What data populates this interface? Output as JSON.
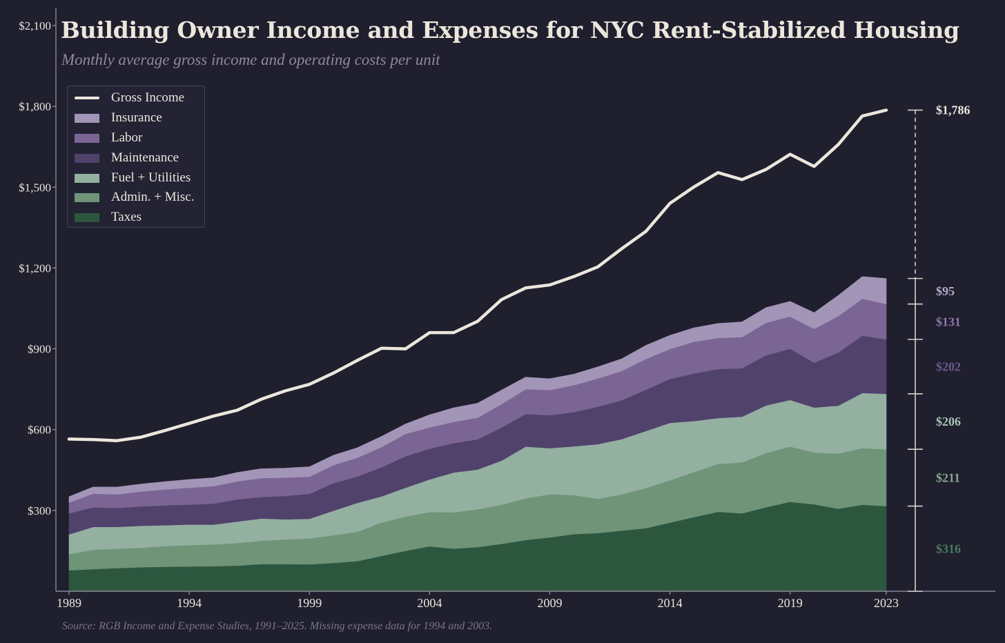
{
  "title": "Building Owner Income and Expenses for NYC Rent-Stabilized Housing",
  "subtitle": "Monthly average gross income and operating costs per unit",
  "source": "Source: RGB Income and Expense Studies, 1991–2025. Missing expense data for 1994 and 2003.",
  "colors": {
    "background": "#1f1f2e",
    "income": "#ece6dc",
    "insurance": "#a395b7",
    "labor": "#7b6594",
    "maintenance": "#51426c",
    "fuel_utilities": "#93b0a0",
    "admin_misc": "#6f9478",
    "taxes": "#2d563f",
    "axis": "#9a9aaa",
    "tick_label": "#ece6dc"
  },
  "legend": [
    {
      "key": "income",
      "label": "Gross Income",
      "kind": "line"
    },
    {
      "key": "insurance",
      "label": "Insurance",
      "kind": "area"
    },
    {
      "key": "labor",
      "label": "Labor",
      "kind": "area"
    },
    {
      "key": "maintenance",
      "label": "Maintenance",
      "kind": "area"
    },
    {
      "key": "fuel_utilities",
      "label": "Fuel + Utilities",
      "kind": "area"
    },
    {
      "key": "admin_misc",
      "label": "Admin. + Misc.",
      "kind": "area"
    },
    {
      "key": "taxes",
      "label": "Taxes",
      "kind": "area"
    }
  ],
  "chart_data": {
    "type": "area",
    "title": "Building Owner Income and Expenses for NYC Rent-Stabilized Housing",
    "subtitle": "Monthly average gross income and operating costs per unit",
    "xlabel": "",
    "ylabel": "",
    "x": [
      1989,
      1990,
      1991,
      1992,
      1993,
      1994,
      1995,
      1996,
      1997,
      1998,
      1999,
      2000,
      2001,
      2002,
      2003,
      2004,
      2005,
      2006,
      2007,
      2008,
      2009,
      2010,
      2011,
      2012,
      2013,
      2014,
      2015,
      2016,
      2017,
      2018,
      2019,
      2020,
      2021,
      2022,
      2023
    ],
    "x_ticks": [
      1989,
      1994,
      1999,
      2004,
      2009,
      2014,
      2019,
      2023
    ],
    "x_tick_labels": [
      "1989",
      "1994",
      "1999",
      "2004",
      "2009",
      "2014",
      "2019",
      "2023"
    ],
    "ylim": [
      0,
      2100
    ],
    "y_ticks": [
      300,
      600,
      900,
      1200,
      1500,
      1800,
      2100
    ],
    "y_tick_labels": [
      "$300",
      "$600",
      "$900",
      "$1,200",
      "$1,500",
      "$1,800",
      "$2,100"
    ],
    "grid": false,
    "legend_position": "top-left",
    "line_series": {
      "key": "income",
      "name": "Gross Income",
      "values": [
        565,
        563,
        559,
        572,
        597,
        623,
        650,
        672,
        713,
        744,
        768,
        810,
        857,
        902,
        900,
        960,
        960,
        1002,
        1083,
        1126,
        1137,
        1168,
        1204,
        1272,
        1336,
        1440,
        1501,
        1554,
        1528,
        1566,
        1622,
        1577,
        1658,
        1764,
        1786
      ]
    },
    "stacked_series": [
      {
        "key": "taxes",
        "name": "Taxes",
        "values": [
          78,
          82,
          86,
          89,
          91,
          92,
          93,
          95,
          101,
          101,
          100,
          105,
          112,
          131,
          150,
          167,
          158,
          164,
          176,
          190,
          200,
          212,
          216,
          225,
          234,
          255,
          275,
          295,
          289,
          312,
          332,
          323,
          306,
          321,
          316
        ]
      },
      {
        "key": "admin_misc",
        "name": "Admin. + Misc.",
        "values": [
          60,
          72,
          72,
          72,
          77,
          79,
          81,
          84,
          86,
          91,
          96,
          103,
          109,
          124,
          127,
          127,
          135,
          140,
          145,
          155,
          160,
          145,
          127,
          135,
          149,
          157,
          167,
          178,
          189,
          201,
          205,
          192,
          205,
          210,
          211
        ]
      },
      {
        "key": "fuel_utilities",
        "name": "Fuel + Utilities",
        "values": [
          73,
          85,
          81,
          82,
          77,
          77,
          73,
          80,
          83,
          75,
          73,
          91,
          107,
          97,
          107,
          121,
          148,
          148,
          164,
          192,
          171,
          181,
          203,
          205,
          212,
          213,
          190,
          170,
          170,
          177,
          173,
          167,
          178,
          205,
          206
        ]
      },
      {
        "key": "maintenance",
        "name": "Maintenance",
        "values": [
          78,
          73,
          70,
          72,
          74,
          74,
          78,
          82,
          80,
          87,
          92,
          102,
          98,
          108,
          117,
          114,
          109,
          112,
          123,
          121,
          122,
          127,
          139,
          144,
          153,
          163,
          176,
          182,
          180,
          186,
          190,
          167,
          197,
          213,
          202
        ]
      },
      {
        "key": "labor",
        "name": "Labor",
        "values": [
          40,
          50,
          51,
          55,
          59,
          62,
          65,
          67,
          70,
          68,
          64,
          67,
          70,
          75,
          83,
          79,
          79,
          80,
          87,
          92,
          94,
          100,
          105,
          109,
          114,
          111,
          118,
          115,
          116,
          121,
          120,
          125,
          135,
          137,
          131
        ]
      },
      {
        "key": "insurance",
        "name": "Insurance",
        "values": [
          22,
          25,
          27,
          28,
          29,
          31,
          31,
          33,
          35,
          35,
          37,
          37,
          37,
          40,
          37,
          47,
          52,
          54,
          52,
          45,
          42,
          41,
          43,
          45,
          51,
          51,
          52,
          54,
          56,
          56,
          56,
          60,
          77,
          82,
          95
        ]
      }
    ],
    "end_labels": [
      {
        "key": "income",
        "text": "$1,786"
      },
      {
        "key": "insurance",
        "text": "$95"
      },
      {
        "key": "labor",
        "text": "$131"
      },
      {
        "key": "maintenance",
        "text": "$202"
      },
      {
        "key": "fuel_utilities",
        "text": "$206"
      },
      {
        "key": "admin_misc",
        "text": "$211"
      },
      {
        "key": "taxes",
        "text": "$316"
      }
    ]
  }
}
